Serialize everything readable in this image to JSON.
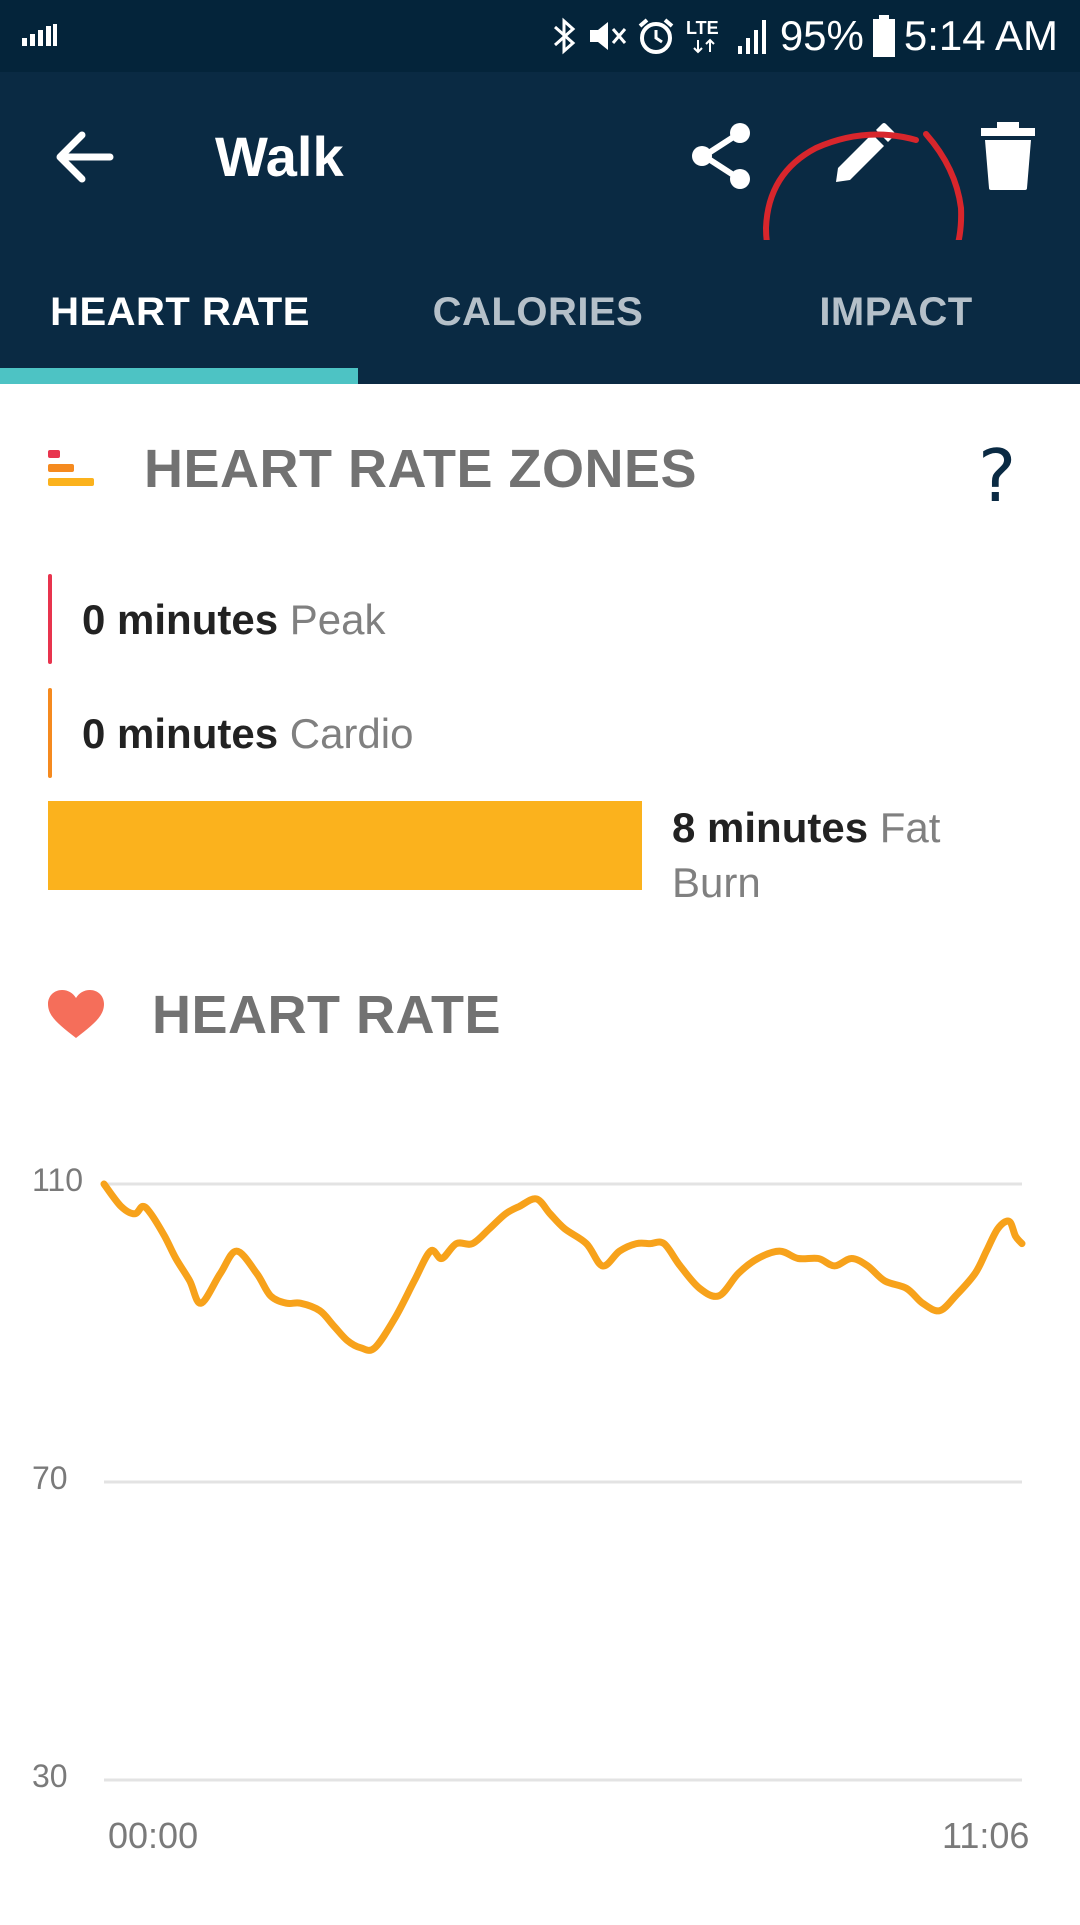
{
  "status_bar": {
    "battery": "95%",
    "time": "5:14 AM",
    "network": "LTE",
    "left_icon": "signal-bars-icon",
    "icons": [
      "bluetooth-icon",
      "vibrate-mute-icon",
      "alarm-icon",
      "lte-icon",
      "signal-icon",
      "battery-icon"
    ]
  },
  "app_bar": {
    "title": "Walk",
    "back_icon": "arrow-left-icon",
    "actions": [
      "share-icon",
      "pencil-icon",
      "trash-icon"
    ]
  },
  "tabs": [
    {
      "label": "HEART RATE",
      "active": true
    },
    {
      "label": "CALORIES",
      "active": false
    },
    {
      "label": "IMPACT",
      "active": false
    }
  ],
  "zones": {
    "title": "HEART RATE ZONES",
    "help_label": "?",
    "rows": [
      {
        "value": "0 minutes",
        "zone": "Peak",
        "color": "#e8344e"
      },
      {
        "value": "0 minutes",
        "zone": "Cardio",
        "color": "#f58a1f"
      },
      {
        "value": "8 minutes",
        "zone": "Fat Burn",
        "color": "#fbb21d"
      }
    ]
  },
  "heart_rate": {
    "title": "HEART RATE",
    "icon": "heart-icon"
  },
  "colors": {
    "header_bg": "#0a2a43",
    "status_bg": "#04243a",
    "tab_indicator": "#4dc3c4",
    "line": "#f7a21b",
    "annotation": "#d8262c"
  },
  "chart_data": {
    "type": "line",
    "title": "",
    "xlabel": "",
    "ylabel": "",
    "yticks": [
      "110",
      "70",
      "30"
    ],
    "ylim": [
      30,
      110
    ],
    "xticks": [
      "00:00",
      "11:06"
    ],
    "grid": true,
    "series": [
      {
        "values": [
          [
            0.0,
            110
          ],
          [
            0.21,
            107
          ],
          [
            0.38,
            106
          ],
          [
            0.48,
            107
          ],
          [
            0.58,
            106
          ],
          [
            0.75,
            103
          ],
          [
            0.89,
            100
          ],
          [
            1.06,
            97
          ],
          [
            1.2,
            94
          ],
          [
            1.44,
            98
          ],
          [
            1.64,
            101
          ],
          [
            1.89,
            98
          ],
          [
            2.06,
            95
          ],
          [
            2.26,
            94
          ],
          [
            2.43,
            94
          ],
          [
            2.67,
            93
          ],
          [
            2.84,
            91
          ],
          [
            3.01,
            89
          ],
          [
            3.18,
            88
          ],
          [
            3.35,
            88
          ],
          [
            3.6,
            92
          ],
          [
            3.84,
            97
          ],
          [
            4.04,
            101
          ],
          [
            4.18,
            100
          ],
          [
            4.36,
            102
          ],
          [
            4.56,
            102
          ],
          [
            4.77,
            104
          ],
          [
            4.97,
            106
          ],
          [
            5.14,
            107
          ],
          [
            5.35,
            108
          ],
          [
            5.52,
            106
          ],
          [
            5.7,
            104
          ],
          [
            5.97,
            102
          ],
          [
            6.17,
            99
          ],
          [
            6.38,
            101
          ],
          [
            6.59,
            102
          ],
          [
            6.76,
            102
          ],
          [
            6.93,
            102
          ],
          [
            7.13,
            99
          ],
          [
            7.37,
            96
          ],
          [
            7.61,
            95
          ],
          [
            7.85,
            98
          ],
          [
            8.09,
            100
          ],
          [
            8.36,
            101
          ],
          [
            8.59,
            100
          ],
          [
            8.84,
            100
          ],
          [
            9.04,
            99
          ],
          [
            9.25,
            100
          ],
          [
            9.45,
            99
          ],
          [
            9.66,
            97
          ],
          [
            9.93,
            96
          ],
          [
            10.13,
            94
          ],
          [
            10.34,
            93
          ],
          [
            10.54,
            95
          ],
          [
            10.78,
            98
          ],
          [
            10.92,
            101
          ],
          [
            11.06,
            104
          ],
          [
            11.2,
            105
          ],
          [
            11.28,
            103
          ],
          [
            11.36,
            102
          ]
        ]
      }
    ]
  }
}
